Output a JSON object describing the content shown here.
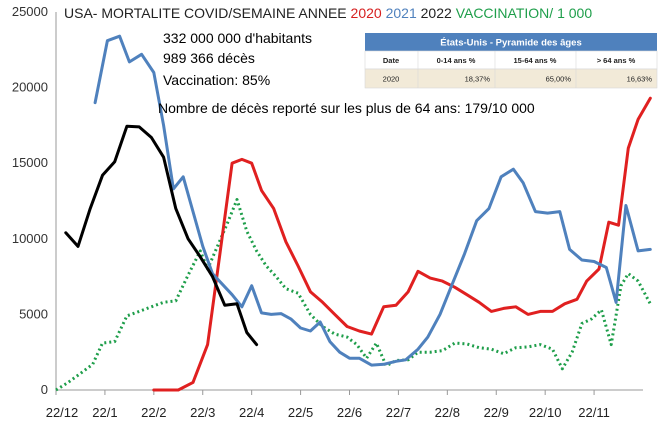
{
  "chart_data": {
    "type": "line",
    "title_segments": [
      {
        "text": "USA- MORTALITE COVID/SEMAINE ANNEE ",
        "color": "#222222"
      },
      {
        "text": "2020",
        "color": "#d62020"
      },
      {
        "text": " ",
        "color": "#222222"
      },
      {
        "text": "2021",
        "color": "#4f81bd"
      },
      {
        "text": " 2022 ",
        "color": "#222222"
      },
      {
        "text": "VACCINATION/ 1 000",
        "color": "#1e9e4a"
      }
    ],
    "x_tick_labels": [
      "22/12",
      "22/1",
      "22/2",
      "22/3",
      "22/4",
      "22/5",
      "22/6",
      "22/7",
      "22/8",
      "22/9",
      "22/10",
      "22/11"
    ],
    "ylim": [
      0,
      25000
    ],
    "y_ticks": [
      0,
      5000,
      10000,
      15000,
      20000,
      25000
    ],
    "y_tick_labels": [
      "0",
      "5000",
      "10000",
      "15000",
      "20000",
      "25000"
    ],
    "grid": false,
    "series": [
      {
        "name": "2020",
        "color": "#e02020",
        "style": "solid",
        "width": 3,
        "points": [
          [
            2.0,
            0
          ],
          [
            2.5,
            0
          ],
          [
            2.8,
            500
          ],
          [
            3.1,
            3000
          ],
          [
            3.35,
            9000
          ],
          [
            3.6,
            15000
          ],
          [
            3.8,
            15250
          ],
          [
            4.0,
            15000
          ],
          [
            4.2,
            13200
          ],
          [
            4.45,
            12000
          ],
          [
            4.7,
            9800
          ],
          [
            4.95,
            8200
          ],
          [
            5.2,
            6500
          ],
          [
            5.45,
            5800
          ],
          [
            5.7,
            5000
          ],
          [
            5.95,
            4200
          ],
          [
            6.2,
            3900
          ],
          [
            6.45,
            3700
          ],
          [
            6.7,
            5500
          ],
          [
            6.95,
            5600
          ],
          [
            7.2,
            6500
          ],
          [
            7.4,
            7850
          ],
          [
            7.65,
            7400
          ],
          [
            7.9,
            7200
          ],
          [
            8.15,
            6800
          ],
          [
            8.4,
            6300
          ],
          [
            8.65,
            5800
          ],
          [
            8.9,
            5200
          ],
          [
            9.15,
            5400
          ],
          [
            9.4,
            5500
          ],
          [
            9.65,
            5000
          ],
          [
            9.9,
            5200
          ],
          [
            10.15,
            5200
          ],
          [
            10.4,
            5700
          ],
          [
            10.65,
            6000
          ],
          [
            10.85,
            7200
          ],
          [
            11.1,
            8000
          ],
          [
            11.3,
            11100
          ],
          [
            11.5,
            10900
          ],
          [
            11.7,
            16000
          ],
          [
            11.9,
            17900
          ],
          [
            12.15,
            19300
          ]
        ]
      },
      {
        "name": "2021",
        "color": "#4f81bd",
        "style": "solid",
        "width": 3,
        "points": [
          [
            0.8,
            19000
          ],
          [
            1.05,
            23100
          ],
          [
            1.3,
            23400
          ],
          [
            1.5,
            21700
          ],
          [
            1.75,
            22200
          ],
          [
            2.0,
            21000
          ],
          [
            2.2,
            17500
          ],
          [
            2.4,
            13300
          ],
          [
            2.6,
            14100
          ],
          [
            2.8,
            11800
          ],
          [
            3.0,
            9500
          ],
          [
            3.2,
            7700
          ],
          [
            3.4,
            7000
          ],
          [
            3.6,
            6300
          ],
          [
            3.8,
            5500
          ],
          [
            4.0,
            6900
          ],
          [
            4.2,
            5100
          ],
          [
            4.4,
            5000
          ],
          [
            4.6,
            5050
          ],
          [
            4.8,
            4700
          ],
          [
            5.0,
            4100
          ],
          [
            5.2,
            3900
          ],
          [
            5.4,
            4500
          ],
          [
            5.6,
            3200
          ],
          [
            5.8,
            2500
          ],
          [
            6.0,
            2100
          ],
          [
            6.2,
            2100
          ],
          [
            6.45,
            1650
          ],
          [
            6.7,
            1700
          ],
          [
            6.95,
            1900
          ],
          [
            7.15,
            2000
          ],
          [
            7.4,
            2700
          ],
          [
            7.6,
            3500
          ],
          [
            7.85,
            5000
          ],
          [
            8.1,
            7000
          ],
          [
            8.35,
            9000
          ],
          [
            8.6,
            11200
          ],
          [
            8.85,
            12000
          ],
          [
            9.1,
            14100
          ],
          [
            9.35,
            14600
          ],
          [
            9.55,
            13700
          ],
          [
            9.8,
            11800
          ],
          [
            10.05,
            11700
          ],
          [
            10.3,
            11800
          ],
          [
            10.5,
            9300
          ],
          [
            10.75,
            8600
          ],
          [
            11.0,
            8500
          ],
          [
            11.25,
            8100
          ],
          [
            11.45,
            5800
          ],
          [
            11.65,
            12200
          ],
          [
            11.9,
            9200
          ],
          [
            12.15,
            9300
          ]
        ]
      },
      {
        "name": "2022",
        "color": "#000000",
        "style": "solid",
        "width": 3,
        "points": [
          [
            0.2,
            10400
          ],
          [
            0.45,
            9500
          ],
          [
            0.7,
            12000
          ],
          [
            0.95,
            14200
          ],
          [
            1.2,
            15100
          ],
          [
            1.45,
            17450
          ],
          [
            1.7,
            17400
          ],
          [
            1.95,
            16700
          ],
          [
            2.2,
            15400
          ],
          [
            2.45,
            12000
          ],
          [
            2.7,
            10000
          ],
          [
            2.95,
            8800
          ],
          [
            3.2,
            7500
          ],
          [
            3.45,
            5600
          ],
          [
            3.7,
            5700
          ],
          [
            3.9,
            3800
          ],
          [
            4.1,
            3000
          ]
        ]
      },
      {
        "name": "VACCINATION/ 1 000",
        "color": "#1e9e4a",
        "style": "dotted",
        "width": 3,
        "points": [
          [
            0.0,
            0
          ],
          [
            0.25,
            500
          ],
          [
            0.5,
            1100
          ],
          [
            0.75,
            1700
          ],
          [
            0.95,
            3100
          ],
          [
            1.2,
            3200
          ],
          [
            1.45,
            4900
          ],
          [
            1.7,
            5200
          ],
          [
            1.95,
            5500
          ],
          [
            2.2,
            5800
          ],
          [
            2.45,
            5900
          ],
          [
            2.7,
            7600
          ],
          [
            2.95,
            9200
          ],
          [
            3.1,
            8000
          ],
          [
            3.3,
            9500
          ],
          [
            3.5,
            11000
          ],
          [
            3.7,
            12600
          ],
          [
            3.9,
            10500
          ],
          [
            4.1,
            9200
          ],
          [
            4.3,
            8200
          ],
          [
            4.5,
            7500
          ],
          [
            4.7,
            6700
          ],
          [
            4.95,
            6400
          ],
          [
            5.2,
            5000
          ],
          [
            5.45,
            4200
          ],
          [
            5.7,
            3700
          ],
          [
            5.95,
            3500
          ],
          [
            6.15,
            3000
          ],
          [
            6.35,
            2100
          ],
          [
            6.55,
            3100
          ],
          [
            6.75,
            1600
          ],
          [
            6.95,
            1950
          ],
          [
            7.2,
            2000
          ],
          [
            7.4,
            2500
          ],
          [
            7.65,
            2500
          ],
          [
            7.9,
            2600
          ],
          [
            8.15,
            3100
          ],
          [
            8.4,
            3050
          ],
          [
            8.65,
            2800
          ],
          [
            8.9,
            2700
          ],
          [
            9.15,
            2400
          ],
          [
            9.4,
            2800
          ],
          [
            9.65,
            2850
          ],
          [
            9.9,
            3000
          ],
          [
            10.15,
            2700
          ],
          [
            10.35,
            1400
          ],
          [
            10.55,
            2500
          ],
          [
            10.75,
            4400
          ],
          [
            10.95,
            4700
          ],
          [
            11.15,
            5300
          ],
          [
            11.35,
            3000
          ],
          [
            11.55,
            6900
          ],
          [
            11.7,
            7700
          ],
          [
            11.9,
            7200
          ],
          [
            12.15,
            5700
          ]
        ]
      }
    ],
    "annotations": [
      "332 000 000 d'habitants",
      "989 366 décès",
      "Vaccination: 85%",
      "Nombre de décès reporté sur les plus de 64 ans: 179/10 000"
    ],
    "table": {
      "title": "États-Unis - Pyramide des âges",
      "columns": [
        "Date",
        "0-14 ans %",
        "15-64 ans %",
        "> 64 ans %"
      ],
      "rows": [
        [
          "2020",
          "18,37%",
          "65,00%",
          "16,63%"
        ]
      ],
      "header_color": "#4f81bd"
    }
  }
}
